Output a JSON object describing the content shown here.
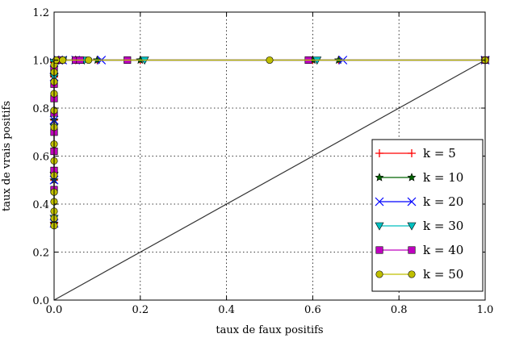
{
  "chart_data": {
    "type": "line",
    "title": "",
    "xlabel": "taux de faux positifs",
    "ylabel": "taux de vrais positifs",
    "xlim": [
      0.0,
      1.0
    ],
    "ylim": [
      0.0,
      1.2
    ],
    "xticks": [
      "0.0",
      "0.2",
      "0.4",
      "0.6",
      "0.8",
      "1.0"
    ],
    "yticks": [
      "0.0",
      "0.2",
      "0.4",
      "0.6",
      "0.8",
      "1.0",
      "1.2"
    ],
    "grid": true,
    "legend_position": "lower-right",
    "diagonal": {
      "x": [
        0,
        1
      ],
      "y": [
        0,
        1
      ],
      "color": "#333333"
    },
    "series": [
      {
        "name": "k = 5",
        "color": "#ff0000",
        "marker": "plus",
        "x": [
          0,
          0,
          0,
          0,
          0,
          0.01,
          0.02,
          0.05,
          0.1,
          0.2,
          0.6,
          0.66,
          1.0
        ],
        "y": [
          0.32,
          0.5,
          0.75,
          0.93,
          0.99,
          1.0,
          1.0,
          1.0,
          1.0,
          1.0,
          1.0,
          1.0,
          1.0
        ]
      },
      {
        "name": "k = 10",
        "color": "#006400",
        "marker": "star",
        "x": [
          0,
          0,
          0,
          0,
          0,
          0.01,
          0.02,
          0.05,
          0.1,
          0.2,
          0.6,
          0.66,
          1.0
        ],
        "y": [
          0.32,
          0.5,
          0.75,
          0.93,
          0.99,
          1.0,
          1.0,
          1.0,
          1.0,
          1.0,
          1.0,
          1.0,
          1.0
        ]
      },
      {
        "name": "k = 20",
        "color": "#0000ff",
        "marker": "x",
        "x": [
          0,
          0,
          0,
          0,
          0,
          0.01,
          0.02,
          0.05,
          0.11,
          0.67,
          1.0
        ],
        "y": [
          0.32,
          0.5,
          0.75,
          0.93,
          0.99,
          1.0,
          1.0,
          1.0,
          1.0,
          1.0,
          1.0
        ]
      },
      {
        "name": "k = 30",
        "color": "#00bfbf",
        "marker": "triangle-down",
        "x": [
          0,
          0,
          0,
          0,
          0,
          0.01,
          0.02,
          0.07,
          0.21,
          0.61,
          1.0
        ],
        "y": [
          0.34,
          0.52,
          0.72,
          0.93,
          0.99,
          1.0,
          1.0,
          1.0,
          1.0,
          1.0,
          1.0
        ]
      },
      {
        "name": "k = 40",
        "color": "#bf00bf",
        "marker": "square",
        "x": [
          0,
          0,
          0,
          0,
          0,
          0,
          0,
          0,
          0.01,
          0.05,
          0.06,
          0.17,
          0.59,
          1.0
        ],
        "y": [
          0.46,
          0.54,
          0.62,
          0.7,
          0.78,
          0.84,
          0.9,
          0.96,
          1.0,
          1.0,
          1.0,
          1.0,
          1.0,
          1.0
        ]
      },
      {
        "name": "k = 50",
        "color": "#bfbf00",
        "marker": "circle",
        "x": [
          0,
          0,
          0,
          0,
          0,
          0,
          0,
          0,
          0,
          0,
          0,
          0,
          0,
          0,
          0.005,
          0.02,
          0.08,
          0.5,
          1.0
        ],
        "y": [
          0.31,
          0.34,
          0.37,
          0.41,
          0.45,
          0.52,
          0.58,
          0.65,
          0.72,
          0.79,
          0.86,
          0.91,
          0.95,
          0.98,
          1.0,
          1.0,
          1.0,
          1.0,
          1.0
        ]
      }
    ]
  }
}
